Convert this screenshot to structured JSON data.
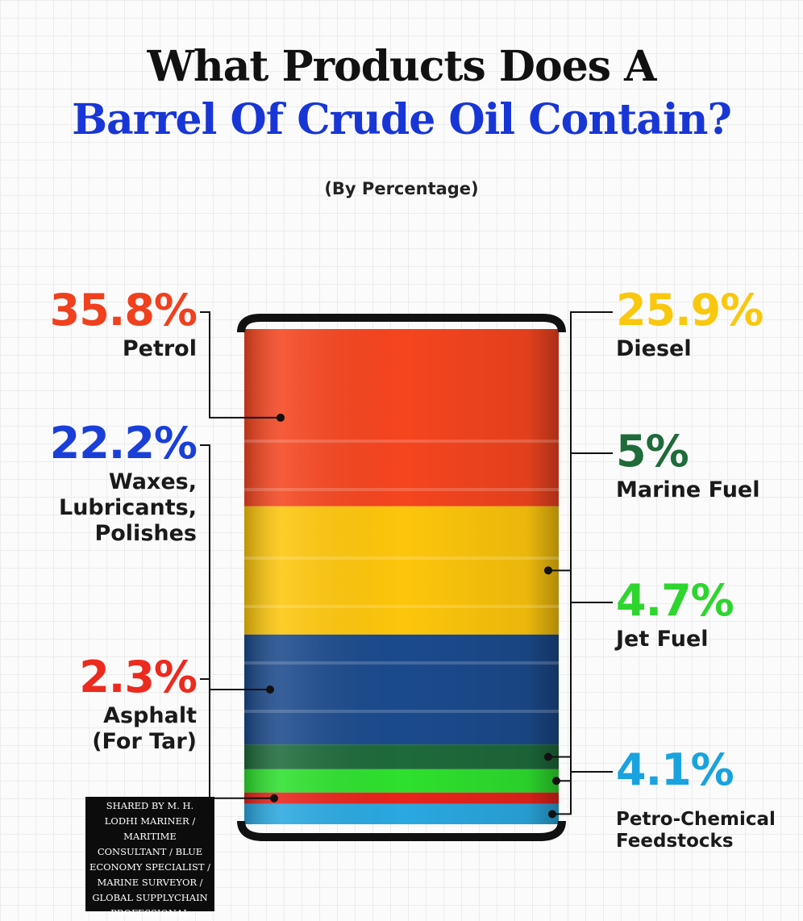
{
  "chart_data": {
    "type": "barrel",
    "title": [
      "What Products Does A",
      "Barrel Of Crude Oil Contain?"
    ],
    "subtitle": "(By Percentage)",
    "series": [
      {
        "name": "Petrol",
        "values": [
          35.8
        ],
        "value_labels": [
          "35.8%"
        ],
        "color": "#f5451f",
        "label_color": "#f0401d",
        "side": "left"
      },
      {
        "name": "Diesel",
        "values": [
          25.9
        ],
        "value_labels": [
          "25.9%"
        ],
        "color": "#fdc60c",
        "label_color": "#f9c80e",
        "side": "right"
      },
      {
        "name": "Waxes,\nLubricants,\nPolishes",
        "values": [
          22.2
        ],
        "value_labels": [
          "22.2%"
        ],
        "color": "#1b4a8c",
        "label_color": "#1a3fd9",
        "side": "left"
      },
      {
        "name": "Marine Fuel",
        "values": [
          5
        ],
        "value_labels": [
          "5%"
        ],
        "color": "#1e6a3b",
        "label_color": "#1f6b3a",
        "side": "right"
      },
      {
        "name": "Jet Fuel",
        "values": [
          4.7
        ],
        "value_labels": [
          "4.7%"
        ],
        "color": "#2ee02e",
        "label_color": "#2ed52e",
        "side": "right"
      },
      {
        "name": "Asphalt\n(For Tar)",
        "values": [
          2.3
        ],
        "value_labels": [
          "2.3%"
        ],
        "color": "#e8231c",
        "label_color": "#ec2a1e",
        "side": "left"
      },
      {
        "name": "Petro-Chemical\nFeedstocks",
        "values": [
          4.1
        ],
        "value_labels": [
          "4.1%"
        ],
        "color": "#2aa8e0",
        "label_color": "#19a3de",
        "side": "right"
      }
    ],
    "credit": "SHARED BY M. H. LODHI MARINER / MARITIME CONSULTANT / BLUE ECONOMY SPECIALIST / MARINE SURVEYOR / GLOBAL SUPPLYCHAIN PROFESSIONAL"
  }
}
